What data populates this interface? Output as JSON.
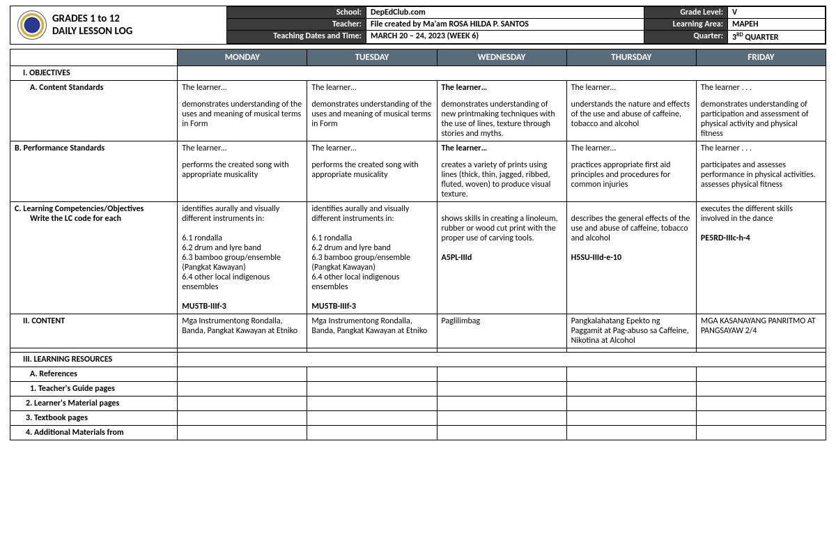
{
  "header": {
    "title_line1": "GRADES 1 to 12",
    "title_line2": "DAILY LESSON LOG",
    "labels": {
      "school": "School:",
      "teacher": "Teacher:",
      "dates": "Teaching Dates and Time:",
      "grade": "Grade Level:",
      "area": "Learning Area:",
      "quarter": "Quarter:"
    },
    "values": {
      "school": "DepEdClub.com",
      "teacher": "File created by Ma'am ROSA HILDA P. SANTOS",
      "dates": "MARCH 20 – 24, 2023 (WEEK 6)",
      "grade": "V",
      "area": "MAPEH",
      "quarter_prefix": "3",
      "quarter_sup": "RD",
      "quarter_suffix": " QUARTER"
    }
  },
  "days": [
    "MONDAY",
    "TUESDAY",
    "WEDNESDAY",
    "THURSDAY",
    "FRIDAY"
  ],
  "sections": {
    "objectives": "I.        OBJECTIVES",
    "content_std": "A.    Content Standards",
    "perf_std": "B.    Performance Standards",
    "learn_comp": "C.    Learning Competencies/Objectives",
    "learn_comp2": "Write the LC code for each",
    "content": "II.        CONTENT",
    "resources": "III.        LEARNING RESOURCES",
    "refs": "A.    References",
    "tg": "1.    Teacher's Guide pages",
    "lm": "2. Learner's Material pages",
    "tb": "3. Textbook pages",
    "am": "4. Additional Materials from"
  },
  "contentStd": {
    "mon": {
      "lead": "The learner…",
      "body": "demonstrates understanding of the uses and meaning of musical terms in Form"
    },
    "tue": {
      "lead": "The learner…",
      "body": "demonstrates understanding of the uses and meaning of musical terms in Form"
    },
    "wed": {
      "lead": "The learner…",
      "body": "demonstrates understanding of new printmaking techniques with the use of lines, texture through stories and myths."
    },
    "thu": {
      "lead": "The learner…",
      "body": "understands the nature and effects of the use and abuse of caffeine, tobacco and alcohol"
    },
    "fri": {
      "lead": "The learner . . .",
      "body": "demonstrates understanding of participation and assessment of physical activity and physical fitness"
    }
  },
  "perfStd": {
    "mon": {
      "lead": "The learner…",
      "body": "performs the created song with appropriate musicality"
    },
    "tue": {
      "lead": "The learner…",
      "body": "performs the created song with appropriate musicality"
    },
    "wed": {
      "lead": "The learner…",
      "body": "creates a variety of prints using lines (thick, thin, jagged, ribbed, fluted, woven) to produce visual texture."
    },
    "thu": {
      "lead": "The learner…",
      "body": "practices appropriate first aid principles and procedures for common injuries"
    },
    "fri": {
      "lead": "The learner . . .",
      "body": "participates and assesses performance in physical activities.\nassesses physical fitness"
    }
  },
  "learnComp": {
    "mon": "identifies aurally and visually different instruments in:\n\n6.1 rondalla\n6.2 drum and lyre band\n6.3 bamboo group/ensemble (Pangkat Kawayan)\n6.4 other local indigenous ensembles\n\nMU5TB-IIIf-3",
    "tue": "identifies aurally and visually different instruments in:\n\n6.1 rondalla\n6.2 drum and lyre band\n6.3 bamboo group/ensemble (Pangkat Kawayan)\n6.4 other local indigenous ensembles\n\nMU5TB-IIIf-3",
    "wed": "\nshows skills in creating a linoleum, rubber or wood cut print with the proper use of carving tools.\n\nA5PL-IIId",
    "thu": "\ndescribes the general effects of the use and abuse of caffeine, tobacco and alcohol\n\nH5SU-IIId-e-10",
    "fri": "executes the different skills involved in the dance\n\nPE5RD-IIIc-h-4"
  },
  "content": {
    "mon": "Mga Instrumentong Rondalla, Banda, Pangkat Kawayan at Etniko",
    "tue": "Mga Instrumentong Rondalla, Banda, Pangkat Kawayan at Etniko",
    "wed": "Paglilimbag",
    "thu": "Pangkalahatang Epekto ng Paggamit at Pag-abuso sa Caffeine, Nikotina at Alcohol",
    "fri": "MGA KASANAYANG PANRITMO AT PANGSAYAW 2/4"
  },
  "colors": {
    "dayHeaderBg": "#5a6b7a",
    "darkLabelBg": "#3b3b3b"
  }
}
